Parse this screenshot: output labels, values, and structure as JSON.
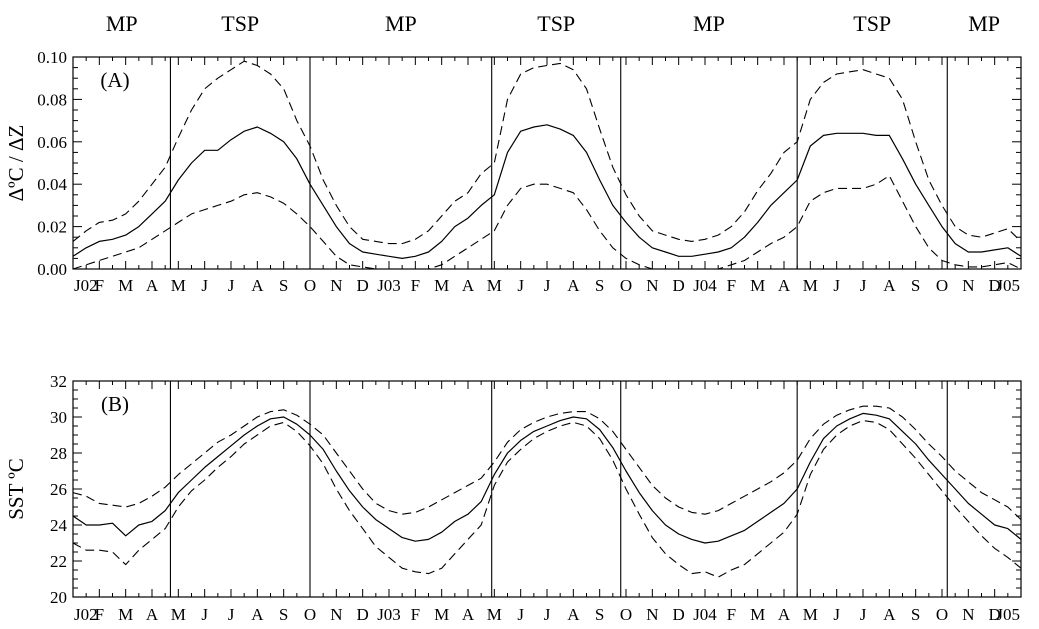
{
  "seasons": [
    "MP",
    "TSP",
    "MP",
    "TSP",
    "MP",
    "TSP",
    "MP"
  ],
  "chart_data": [
    {
      "type": "line",
      "panel_label": "(A)",
      "ylabel": "ΔºC / ΔZ",
      "ylim": [
        0.0,
        0.1
      ],
      "yticks": [
        "0.00",
        "0.02",
        "0.04",
        "0.06",
        "0.08",
        "0.10"
      ],
      "x_tick_labels": [
        "J02",
        "F",
        "M",
        "A",
        "M",
        "J",
        "J",
        "A",
        "S",
        "O",
        "N",
        "D",
        "J03",
        "F",
        "M",
        "A",
        "M",
        "J",
        "J",
        "A",
        "S",
        "O",
        "N",
        "D",
        "J04",
        "F",
        "M",
        "A",
        "M",
        "J",
        "J",
        "A",
        "S",
        "O",
        "N",
        "D",
        "J05"
      ],
      "xlim_months": [
        0,
        36
      ],
      "season_boundaries_months": [
        3.7,
        9.0,
        15.9,
        20.8,
        27.5,
        33.2
      ],
      "series": [
        {
          "style": "solid",
          "x": [
            0,
            0.5,
            1,
            1.5,
            2,
            2.5,
            3,
            3.5,
            4,
            4.5,
            5,
            5.5,
            6,
            6.5,
            7,
            7.5,
            8,
            8.5,
            9,
            9.5,
            10,
            10.5,
            11,
            11.5,
            12,
            12.5,
            13,
            13.5,
            14,
            14.5,
            15,
            15.5,
            16,
            16.5,
            17,
            17.5,
            18,
            18.5,
            19,
            19.5,
            20,
            20.5,
            21,
            21.5,
            22,
            22.5,
            23,
            23.5,
            24,
            24.5,
            25,
            25.5,
            26,
            26.5,
            27,
            27.5,
            28,
            28.5,
            29,
            29.5,
            30,
            30.5,
            31,
            31.5,
            32,
            32.5,
            33,
            33.5,
            34,
            34.5,
            35,
            35.5,
            36
          ],
          "y": [
            0.006,
            0.01,
            0.013,
            0.014,
            0.016,
            0.02,
            0.026,
            0.032,
            0.042,
            0.05,
            0.056,
            0.056,
            0.061,
            0.065,
            0.067,
            0.064,
            0.06,
            0.052,
            0.04,
            0.03,
            0.02,
            0.012,
            0.008,
            0.007,
            0.006,
            0.005,
            0.006,
            0.008,
            0.013,
            0.02,
            0.024,
            0.03,
            0.035,
            0.055,
            0.065,
            0.067,
            0.068,
            0.066,
            0.063,
            0.055,
            0.042,
            0.03,
            0.022,
            0.015,
            0.01,
            0.008,
            0.006,
            0.006,
            0.007,
            0.008,
            0.01,
            0.015,
            0.022,
            0.03,
            0.036,
            0.042,
            0.058,
            0.063,
            0.064,
            0.064,
            0.064,
            0.063,
            0.063,
            0.052,
            0.04,
            0.03,
            0.02,
            0.012,
            0.008,
            0.008,
            0.009,
            0.01,
            0.006
          ]
        },
        {
          "style": "dashed",
          "x": [
            0,
            0.5,
            1,
            1.5,
            2,
            2.5,
            3,
            3.5,
            4,
            4.5,
            5,
            5.5,
            6,
            6.5,
            7,
            7.5,
            8,
            8.5,
            9,
            9.5,
            10,
            10.5,
            11,
            11.5,
            12,
            12.5,
            13,
            13.5,
            14,
            14.5,
            15,
            15.5,
            16,
            16.5,
            17,
            17.5,
            18,
            18.5,
            19,
            19.5,
            20,
            20.5,
            21,
            21.5,
            22,
            22.5,
            23,
            23.5,
            24,
            24.5,
            25,
            25.5,
            26,
            26.5,
            27,
            27.5,
            28,
            28.5,
            29,
            29.5,
            30,
            30.5,
            31,
            31.5,
            32,
            32.5,
            33,
            33.5,
            34,
            34.5,
            35,
            35.5,
            36
          ],
          "y": [
            0.013,
            0.018,
            0.022,
            0.023,
            0.026,
            0.032,
            0.04,
            0.048,
            0.062,
            0.075,
            0.085,
            0.09,
            0.094,
            0.098,
            0.096,
            0.092,
            0.085,
            0.07,
            0.058,
            0.042,
            0.03,
            0.02,
            0.014,
            0.013,
            0.012,
            0.012,
            0.014,
            0.018,
            0.025,
            0.032,
            0.036,
            0.045,
            0.05,
            0.08,
            0.092,
            0.095,
            0.096,
            0.097,
            0.094,
            0.085,
            0.066,
            0.048,
            0.035,
            0.025,
            0.018,
            0.016,
            0.014,
            0.013,
            0.014,
            0.016,
            0.02,
            0.027,
            0.037,
            0.045,
            0.055,
            0.06,
            0.08,
            0.088,
            0.092,
            0.093,
            0.094,
            0.092,
            0.09,
            0.08,
            0.06,
            0.042,
            0.03,
            0.02,
            0.016,
            0.015,
            0.017,
            0.019,
            0.013
          ]
        },
        {
          "style": "dashed",
          "x": [
            0,
            0.5,
            1,
            1.5,
            2,
            2.5,
            3,
            3.5,
            4,
            4.5,
            5,
            5.5,
            6,
            6.5,
            7,
            7.5,
            8,
            8.5,
            9,
            9.5,
            10,
            10.5,
            11,
            11.5,
            12,
            12.5,
            13,
            13.5,
            14,
            14.5,
            15,
            15.5,
            16,
            16.5,
            17,
            17.5,
            18,
            18.5,
            19,
            19.5,
            20,
            20.5,
            21,
            21.5,
            22,
            22.5,
            23,
            23.5,
            24,
            24.5,
            25,
            25.5,
            26,
            26.5,
            27,
            27.5,
            28,
            28.5,
            29,
            29.5,
            30,
            30.5,
            31,
            31.5,
            32,
            32.5,
            33,
            33.5,
            34,
            34.5,
            35,
            35.5,
            36
          ],
          "y": [
            0.0,
            0.002,
            0.004,
            0.006,
            0.008,
            0.01,
            0.014,
            0.018,
            0.022,
            0.026,
            0.028,
            0.03,
            0.032,
            0.035,
            0.036,
            0.034,
            0.031,
            0.026,
            0.02,
            0.013,
            0.006,
            0.002,
            0.001,
            0.0,
            0.0,
            0.0,
            0.0,
            0.0,
            0.002,
            0.006,
            0.01,
            0.014,
            0.018,
            0.03,
            0.038,
            0.04,
            0.04,
            0.038,
            0.036,
            0.028,
            0.018,
            0.01,
            0.005,
            0.002,
            0.0,
            0.0,
            0.0,
            0.0,
            0.0,
            0.0,
            0.002,
            0.004,
            0.008,
            0.012,
            0.015,
            0.02,
            0.032,
            0.036,
            0.038,
            0.038,
            0.038,
            0.04,
            0.044,
            0.032,
            0.02,
            0.01,
            0.004,
            0.002,
            0.001,
            0.001,
            0.002,
            0.003,
            0.0
          ]
        }
      ]
    },
    {
      "type": "line",
      "panel_label": "(B)",
      "ylabel": "SST ºC",
      "ylim": [
        20,
        32
      ],
      "yticks": [
        "20",
        "22",
        "24",
        "26",
        "28",
        "30",
        "32"
      ],
      "x_tick_labels": [
        "J02",
        "F",
        "M",
        "A",
        "M",
        "J",
        "J",
        "A",
        "S",
        "O",
        "N",
        "D",
        "J03",
        "F",
        "M",
        "A",
        "M",
        "J",
        "J",
        "A",
        "S",
        "O",
        "N",
        "D",
        "J04",
        "F",
        "M",
        "A",
        "M",
        "J",
        "J",
        "A",
        "S",
        "O",
        "N",
        "D",
        "J05"
      ],
      "xlim_months": [
        0,
        36
      ],
      "season_boundaries_months": [
        3.7,
        9.0,
        15.9,
        20.8,
        27.5,
        33.2
      ],
      "series": [
        {
          "style": "solid",
          "x": [
            0,
            0.5,
            1,
            1.5,
            2,
            2.5,
            3,
            3.5,
            4,
            4.5,
            5,
            5.5,
            6,
            6.5,
            7,
            7.5,
            8,
            8.5,
            9,
            9.5,
            10,
            10.5,
            11,
            11.5,
            12,
            12.5,
            13,
            13.5,
            14,
            14.5,
            15,
            15.5,
            16,
            16.5,
            17,
            17.5,
            18,
            18.5,
            19,
            19.5,
            20,
            20.5,
            21,
            21.5,
            22,
            22.5,
            23,
            23.5,
            24,
            24.5,
            25,
            25.5,
            26,
            26.5,
            27,
            27.5,
            28,
            28.5,
            29,
            29.5,
            30,
            30.5,
            31,
            31.5,
            32,
            32.5,
            33,
            33.5,
            34,
            34.5,
            35,
            35.5,
            36
          ],
          "y": [
            24.5,
            24.0,
            24.0,
            24.1,
            23.4,
            24.0,
            24.2,
            24.8,
            25.8,
            26.5,
            27.2,
            27.8,
            28.4,
            29.0,
            29.5,
            29.9,
            30.0,
            29.6,
            29.0,
            28.2,
            27.0,
            25.9,
            25.0,
            24.3,
            23.8,
            23.3,
            23.1,
            23.2,
            23.6,
            24.2,
            24.6,
            25.3,
            26.8,
            28.0,
            28.7,
            29.2,
            29.5,
            29.8,
            30.0,
            29.9,
            29.3,
            28.3,
            27.0,
            25.8,
            24.8,
            24.0,
            23.5,
            23.2,
            23.0,
            23.1,
            23.4,
            23.7,
            24.2,
            24.7,
            25.2,
            26.0,
            27.5,
            28.8,
            29.5,
            29.9,
            30.2,
            30.1,
            29.9,
            29.2,
            28.5,
            27.6,
            26.8,
            26.0,
            25.2,
            24.6,
            24.0,
            23.8,
            23.2
          ]
        },
        {
          "style": "dashed",
          "x": [
            0,
            0.5,
            1,
            1.5,
            2,
            2.5,
            3,
            3.5,
            4,
            4.5,
            5,
            5.5,
            6,
            6.5,
            7,
            7.5,
            8,
            8.5,
            9,
            9.5,
            10,
            10.5,
            11,
            11.5,
            12,
            12.5,
            13,
            13.5,
            14,
            14.5,
            15,
            15.5,
            16,
            16.5,
            17,
            17.5,
            18,
            18.5,
            19,
            19.5,
            20,
            20.5,
            21,
            21.5,
            22,
            22.5,
            23,
            23.5,
            24,
            24.5,
            25,
            25.5,
            26,
            26.5,
            27,
            27.5,
            28,
            28.5,
            29,
            29.5,
            30,
            30.5,
            31,
            31.5,
            32,
            32.5,
            33,
            33.5,
            34,
            34.5,
            35,
            35.5,
            36
          ],
          "y": [
            25.8,
            25.6,
            25.2,
            25.1,
            25.0,
            25.2,
            25.6,
            26.1,
            26.8,
            27.4,
            28.0,
            28.6,
            29.0,
            29.5,
            30.0,
            30.3,
            30.4,
            30.1,
            29.6,
            29.0,
            28.0,
            27.0,
            26.0,
            25.2,
            24.8,
            24.6,
            24.7,
            25.0,
            25.4,
            25.8,
            26.2,
            26.6,
            27.5,
            28.6,
            29.3,
            29.7,
            30.0,
            30.2,
            30.3,
            30.3,
            29.9,
            29.2,
            28.2,
            27.2,
            26.2,
            25.5,
            25.0,
            24.7,
            24.6,
            24.8,
            25.2,
            25.6,
            26.0,
            26.4,
            26.9,
            27.6,
            28.8,
            29.6,
            30.1,
            30.4,
            30.6,
            30.6,
            30.5,
            30.0,
            29.3,
            28.5,
            27.8,
            27.0,
            26.4,
            25.8,
            25.4,
            25.0,
            24.3
          ]
        },
        {
          "style": "dashed",
          "x": [
            0,
            0.5,
            1,
            1.5,
            2,
            2.5,
            3,
            3.5,
            4,
            4.5,
            5,
            5.5,
            6,
            6.5,
            7,
            7.5,
            8,
            8.5,
            9,
            9.5,
            10,
            10.5,
            11,
            11.5,
            12,
            12.5,
            13,
            13.5,
            14,
            14.5,
            15,
            15.5,
            16,
            16.5,
            17,
            17.5,
            18,
            18.5,
            19,
            19.5,
            20,
            20.5,
            21,
            21.5,
            22,
            22.5,
            23,
            23.5,
            24,
            24.5,
            25,
            25.5,
            26,
            26.5,
            27,
            27.5,
            28,
            28.5,
            29,
            29.5,
            30,
            30.5,
            31,
            31.5,
            32,
            32.5,
            33,
            33.5,
            34,
            34.5,
            35,
            35.5,
            36
          ],
          "y": [
            23.0,
            22.6,
            22.6,
            22.5,
            21.8,
            22.6,
            23.2,
            23.8,
            25.0,
            25.9,
            26.5,
            27.2,
            27.8,
            28.5,
            29.0,
            29.5,
            29.7,
            29.2,
            28.4,
            27.4,
            26.0,
            24.8,
            23.8,
            22.8,
            22.2,
            21.6,
            21.4,
            21.3,
            21.6,
            22.4,
            23.2,
            24.0,
            26.2,
            27.5,
            28.2,
            28.8,
            29.2,
            29.5,
            29.7,
            29.5,
            28.8,
            27.6,
            26.0,
            24.6,
            23.3,
            22.4,
            21.8,
            21.3,
            21.4,
            21.1,
            21.5,
            21.8,
            22.4,
            23.0,
            23.6,
            24.6,
            26.8,
            28.2,
            29.0,
            29.5,
            29.8,
            29.7,
            29.3,
            28.5,
            27.7,
            26.8,
            25.9,
            25.0,
            24.2,
            23.4,
            22.7,
            22.2,
            21.6
          ]
        }
      ]
    }
  ]
}
